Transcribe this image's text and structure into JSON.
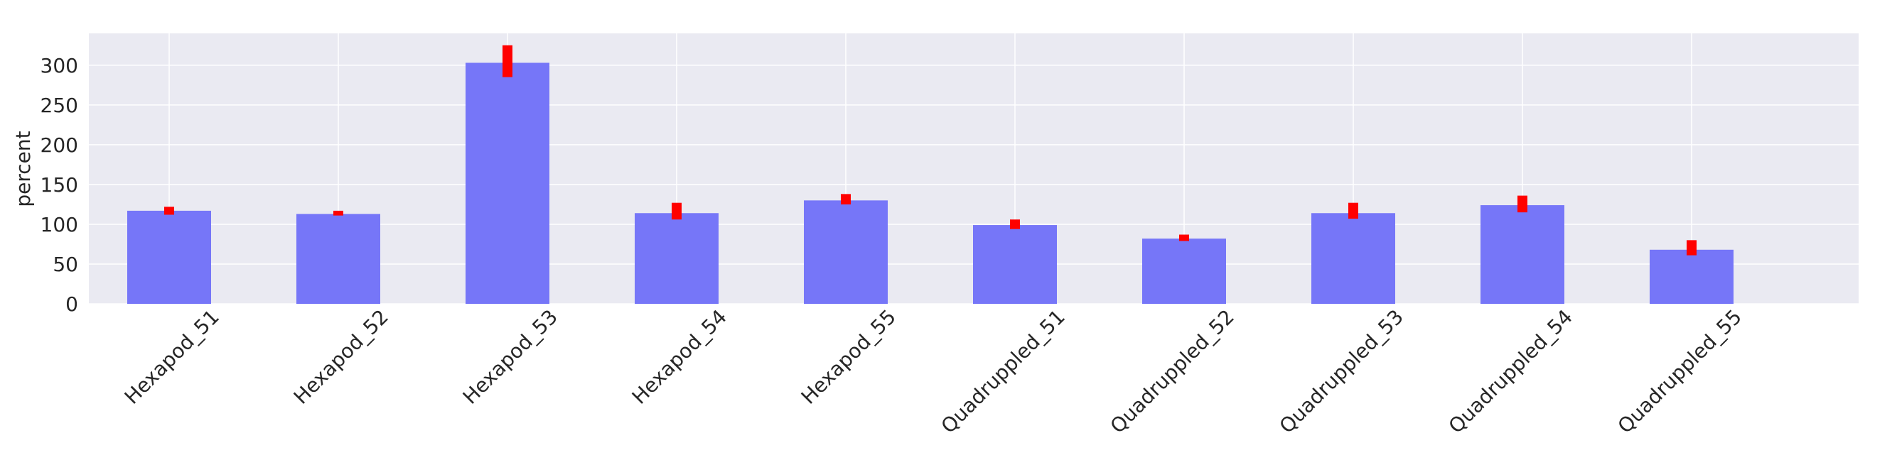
{
  "chart_data": {
    "type": "bar",
    "title": "",
    "xlabel": "",
    "ylabel": "percent",
    "categories": [
      "Hexapod_51",
      "Hexapod_52",
      "Hexapod_53",
      "Hexapod_54",
      "Hexapod_55",
      "Quadruppled_51",
      "Quadruppled_52",
      "Quadruppled_53",
      "Quadruppled_54",
      "Quadruppled_55"
    ],
    "values": [
      117,
      113,
      303,
      114,
      130,
      99,
      82,
      114,
      124,
      68
    ],
    "error_low": [
      112,
      111,
      285,
      106,
      125,
      94,
      79,
      107,
      115,
      61
    ],
    "error_high": [
      122,
      117,
      325,
      127,
      138,
      106,
      87,
      127,
      136,
      80
    ],
    "ylim": [
      0,
      340
    ],
    "yticks": [
      0,
      50,
      100,
      150,
      200,
      250,
      300
    ],
    "grid": true,
    "colors": {
      "bar": "#7676f8",
      "error": "#ff0000",
      "plot_bg": "#eaeaf2",
      "grid": "#ffffff"
    }
  }
}
